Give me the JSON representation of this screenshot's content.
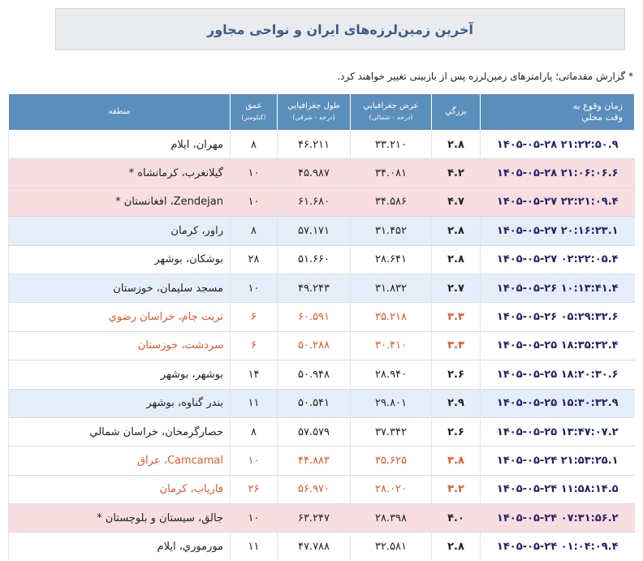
{
  "header": {
    "title": "آخرین زمین‌لرزه‌های ایران و نواحی مجاور",
    "note": "* گزارش مقدماتی؛ پارامترهای زمین‌لرزه پس از بازبینی تغییر خواهند کرد."
  },
  "table": {
    "columns": [
      {
        "lines": [
          "زمان وقوع به",
          "وقت محلي"
        ]
      },
      {
        "lines": [
          "بزرگي"
        ]
      },
      {
        "lines": [
          "عرض جغرافيايي",
          "(درجه - شمالي)"
        ]
      },
      {
        "lines": [
          "طول جغرافيايي",
          "(درجه - شرقي)"
        ]
      },
      {
        "lines": [
          "عمق",
          "(کيلومتر)"
        ]
      },
      {
        "lines": [
          "منطقه"
        ]
      }
    ],
    "rows": [
      {
        "cells": [
          "۱۴۰۵-۰۵-۲۸ ۲۱:۲۲:۵۰.۹",
          "۲.۸",
          "۳۳.۲۱۰",
          "۴۶.۲۱۱",
          "۸",
          "مهران، ایلام"
        ],
        "background": "#ffffff",
        "color": "#222222"
      },
      {
        "cells": [
          "۱۴۰۵-۰۵-۲۸ ۲۱:۰۶:۰۶.۶",
          "۴.۲",
          "۳۴.۰۸۱",
          "۴۵.۹۸۷",
          "۱۰",
          "گیلانغرب، کرمانشاه *"
        ],
        "background": "#f8dee1",
        "color": "#222222"
      },
      {
        "cells": [
          "۱۴۰۵-۰۵-۲۷ ۲۲:۲۱:۰۹.۴",
          "۴.۷",
          "۳۴.۵۸۶",
          "۶۱.۶۸۰",
          "۱۰",
          "Zendejan، افغانستان *"
        ],
        "background": "#f8dee1",
        "color": "#222222"
      },
      {
        "cells": [
          "۱۴۰۵-۰۵-۲۷ ۲۰:۱۶:۲۳.۱",
          "۲.۸",
          "۳۱.۴۵۲",
          "۵۷.۱۷۱",
          "۸",
          "راور، کرمان"
        ],
        "background": "#e5edf8",
        "color": "#222222"
      },
      {
        "cells": [
          "۱۴۰۵-۰۵-۲۷ ۰۲:۲۲:۰۵.۴",
          "۲.۸",
          "۲۸.۶۴۱",
          "۵۱.۶۶۰",
          "۲۸",
          "بوشکان، بوشهر"
        ],
        "background": "#ffffff",
        "color": "#222222"
      },
      {
        "cells": [
          "۱۴۰۵-۰۵-۲۶ ۱۰:۱۳:۴۱.۴",
          "۲.۷",
          "۳۱.۸۳۲",
          "۴۹.۲۴۳",
          "۱۰",
          "مسجد سلیمان، خوزستان"
        ],
        "background": "#e5edf8",
        "color": "#222222"
      },
      {
        "cells": [
          "۱۴۰۵-۰۵-۲۶ ۰۵:۲۹:۳۲.۶",
          "۳.۳",
          "۳۵.۲۱۸",
          "۶۰.۵۹۱",
          "۶",
          "تربت جام، خراسان رضوي"
        ],
        "background": "#ffffff",
        "color": "#e0582a"
      },
      {
        "cells": [
          "۱۴۰۵-۰۵-۲۵ ۱۸:۳۵:۳۲.۴",
          "۳.۳",
          "۳۰.۴۱۰",
          "۵۰.۲۸۸",
          "۶",
          "سردشت، خوزستان"
        ],
        "background": "#ffffff",
        "color": "#e0582a"
      },
      {
        "cells": [
          "۱۴۰۵-۰۵-۲۵ ۱۸:۲۰:۳۰.۶",
          "۲.۶",
          "۲۸.۹۴۰",
          "۵۰.۹۴۸",
          "۱۴",
          "بوشهر، بوشهر"
        ],
        "background": "#ffffff",
        "color": "#222222"
      },
      {
        "cells": [
          "۱۴۰۵-۰۵-۲۵ ۱۵:۳۰:۳۲.۹",
          "۲.۹",
          "۲۹.۸۰۱",
          "۵۰.۵۴۱",
          "۱۱",
          "بندر گناوه، بوشهر"
        ],
        "background": "#e5edf8",
        "color": "#222222"
      },
      {
        "cells": [
          "۱۴۰۵-۰۵-۲۵ ۱۳:۴۷:۰۷.۲",
          "۲.۶",
          "۳۷.۳۴۲",
          "۵۷.۵۷۹",
          "۸",
          "حصارگرمخان، خراسان شمالي"
        ],
        "background": "#ffffff",
        "color": "#222222"
      },
      {
        "cells": [
          "۱۴۰۵-۰۵-۲۴ ۲۱:۵۳:۲۵.۱",
          "۳.۸",
          "۳۵.۶۲۵",
          "۴۴.۸۸۳",
          "۱۰",
          "Camcamal، عراق"
        ],
        "background": "#ffffff",
        "color": "#e0582a"
      },
      {
        "cells": [
          "۱۴۰۵-۰۵-۲۴ ۱۱:۵۸:۱۴.۵",
          "۳.۲",
          "۲۸.۰۲۰",
          "۵۶.۹۷۰",
          "۲۶",
          "فارياب، کرمان"
        ],
        "background": "#ffffff",
        "color": "#e0582a"
      },
      {
        "cells": [
          "۱۴۰۵-۰۵-۲۴ ۰۷:۳۱:۵۶.۲",
          "۴.۰",
          "۲۸.۳۹۸",
          "۶۳.۲۴۷",
          "۱۰",
          "جالق، سيستان و بلوچستان *"
        ],
        "background": "#f8dee1",
        "color": "#222222"
      },
      {
        "cells": [
          "۱۴۰۵-۰۵-۲۴ ۰۱:۰۴:۰۹.۴",
          "۲.۸",
          "۳۲.۵۸۱",
          "۴۷.۷۸۸",
          "۱۱",
          "مورموري، ايلام"
        ],
        "background": "#ffffff",
        "color": "#222222"
      }
    ]
  }
}
